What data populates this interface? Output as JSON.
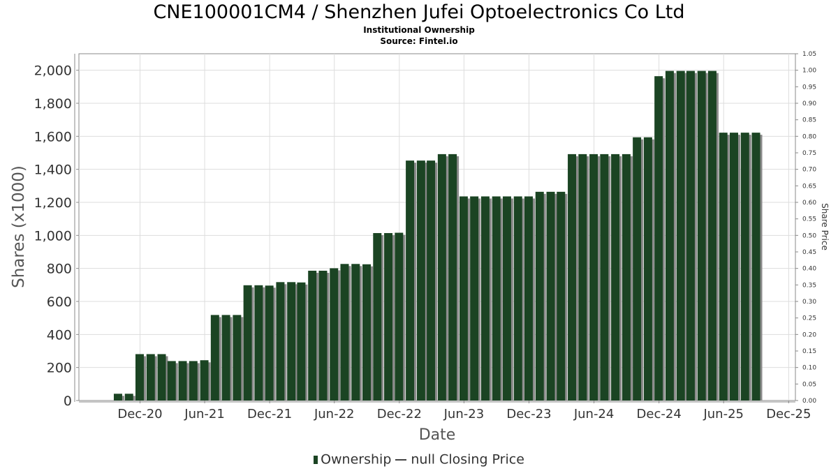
{
  "title": "CNE100001CM4 / Shenzhen Jufei Optoelectronics Co Ltd",
  "subtitle1": "Institutional Ownership",
  "subtitle2": "Source: Fintel.io",
  "legend": {
    "ownership": "Ownership",
    "price": "null Closing Price"
  },
  "colors": {
    "bar": "#1b4423",
    "bar_shadow": "#8a8a8a",
    "grid": "#dddddd",
    "axis": "#888888"
  },
  "chart_data": {
    "type": "bar",
    "title": "CNE100001CM4 / Shenzhen Jufei Optoelectronics Co Ltd",
    "xlabel": "Date",
    "ylabel": "Shares (x1000)",
    "y2label": "Share Price",
    "ylim": [
      0,
      2100
    ],
    "y2lim": [
      0,
      1.05
    ],
    "yticks": [
      0,
      200,
      400,
      600,
      800,
      1000,
      1200,
      1400,
      1600,
      1800,
      2000
    ],
    "ytick_labels": [
      "0",
      "200",
      "400",
      "600",
      "800",
      "1,000",
      "1,200",
      "1,400",
      "1,600",
      "1,800",
      "2,000"
    ],
    "y2ticks": [
      0.0,
      0.05,
      0.1,
      0.15,
      0.2,
      0.25,
      0.3,
      0.35,
      0.4,
      0.45,
      0.5,
      0.55,
      0.6,
      0.65,
      0.7,
      0.75,
      0.8,
      0.85,
      0.9,
      0.95,
      1.0,
      1.05
    ],
    "y2tick_labels": [
      "0.00",
      "0.05",
      "0.10",
      "0.15",
      "0.20",
      "0.25",
      "0.30",
      "0.35",
      "0.40",
      "0.45",
      "0.50",
      "0.55",
      "0.60",
      "0.65",
      "0.70",
      "0.75",
      "0.80",
      "0.85",
      "0.90",
      "0.95",
      "1.00",
      "1.05"
    ],
    "xlim": [
      "2020-06-12",
      "2025-12-20"
    ],
    "xticks": [
      {
        "date": "2020-12-01",
        "label": "Dec-20"
      },
      {
        "date": "2021-06-01",
        "label": "Jun-21"
      },
      {
        "date": "2021-12-01",
        "label": "Dec-21"
      },
      {
        "date": "2022-06-01",
        "label": "Jun-22"
      },
      {
        "date": "2022-12-01",
        "label": "Dec-22"
      },
      {
        "date": "2023-06-01",
        "label": "Jun-23"
      },
      {
        "date": "2023-12-01",
        "label": "Dec-23"
      },
      {
        "date": "2024-06-01",
        "label": "Jun-24"
      },
      {
        "date": "2024-12-01",
        "label": "Dec-24"
      },
      {
        "date": "2025-06-01",
        "label": "Jun-25"
      },
      {
        "date": "2025-12-01",
        "label": "Dec-25"
      }
    ],
    "grid": true,
    "legend_position": "bottom",
    "series": [
      {
        "name": "Ownership",
        "points": [
          {
            "x": "2020-09-30",
            "y": 41
          },
          {
            "x": "2020-10-31",
            "y": 41
          },
          {
            "x": "2020-11-30",
            "y": 281
          },
          {
            "x": "2020-12-31",
            "y": 281
          },
          {
            "x": "2021-01-31",
            "y": 281
          },
          {
            "x": "2021-02-28",
            "y": 239
          },
          {
            "x": "2021-03-31",
            "y": 239
          },
          {
            "x": "2021-04-30",
            "y": 239
          },
          {
            "x": "2021-05-31",
            "y": 244
          },
          {
            "x": "2021-06-30",
            "y": 518
          },
          {
            "x": "2021-07-31",
            "y": 518
          },
          {
            "x": "2021-08-31",
            "y": 518
          },
          {
            "x": "2021-09-30",
            "y": 698
          },
          {
            "x": "2021-10-31",
            "y": 698
          },
          {
            "x": "2021-11-30",
            "y": 696
          },
          {
            "x": "2021-12-31",
            "y": 717
          },
          {
            "x": "2022-01-31",
            "y": 717
          },
          {
            "x": "2022-02-28",
            "y": 715
          },
          {
            "x": "2022-03-31",
            "y": 786
          },
          {
            "x": "2022-04-30",
            "y": 786
          },
          {
            "x": "2022-05-31",
            "y": 801
          },
          {
            "x": "2022-06-30",
            "y": 827
          },
          {
            "x": "2022-07-31",
            "y": 827
          },
          {
            "x": "2022-08-31",
            "y": 825
          },
          {
            "x": "2022-09-30",
            "y": 1014
          },
          {
            "x": "2022-10-31",
            "y": 1014
          },
          {
            "x": "2022-11-30",
            "y": 1016
          },
          {
            "x": "2022-12-31",
            "y": 1453
          },
          {
            "x": "2023-01-31",
            "y": 1453
          },
          {
            "x": "2023-02-28",
            "y": 1453
          },
          {
            "x": "2023-03-31",
            "y": 1492
          },
          {
            "x": "2023-04-30",
            "y": 1492
          },
          {
            "x": "2023-05-31",
            "y": 1236
          },
          {
            "x": "2023-06-30",
            "y": 1236
          },
          {
            "x": "2023-07-31",
            "y": 1236
          },
          {
            "x": "2023-08-31",
            "y": 1236
          },
          {
            "x": "2023-09-30",
            "y": 1236
          },
          {
            "x": "2023-10-31",
            "y": 1236
          },
          {
            "x": "2023-11-30",
            "y": 1236
          },
          {
            "x": "2023-12-31",
            "y": 1264
          },
          {
            "x": "2024-01-31",
            "y": 1264
          },
          {
            "x": "2024-02-29",
            "y": 1264
          },
          {
            "x": "2024-03-31",
            "y": 1492
          },
          {
            "x": "2024-04-30",
            "y": 1492
          },
          {
            "x": "2024-05-31",
            "y": 1492
          },
          {
            "x": "2024-06-30",
            "y": 1492
          },
          {
            "x": "2024-07-31",
            "y": 1492
          },
          {
            "x": "2024-08-31",
            "y": 1492
          },
          {
            "x": "2024-09-30",
            "y": 1594
          },
          {
            "x": "2024-10-31",
            "y": 1594
          },
          {
            "x": "2024-11-30",
            "y": 1964
          },
          {
            "x": "2024-12-31",
            "y": 1996
          },
          {
            "x": "2025-01-31",
            "y": 1996
          },
          {
            "x": "2025-02-28",
            "y": 1996
          },
          {
            "x": "2025-03-31",
            "y": 1996
          },
          {
            "x": "2025-04-30",
            "y": 1996
          },
          {
            "x": "2025-05-31",
            "y": 1622
          },
          {
            "x": "2025-06-30",
            "y": 1622
          },
          {
            "x": "2025-07-31",
            "y": 1622
          },
          {
            "x": "2025-08-31",
            "y": 1622
          }
        ]
      }
    ]
  }
}
